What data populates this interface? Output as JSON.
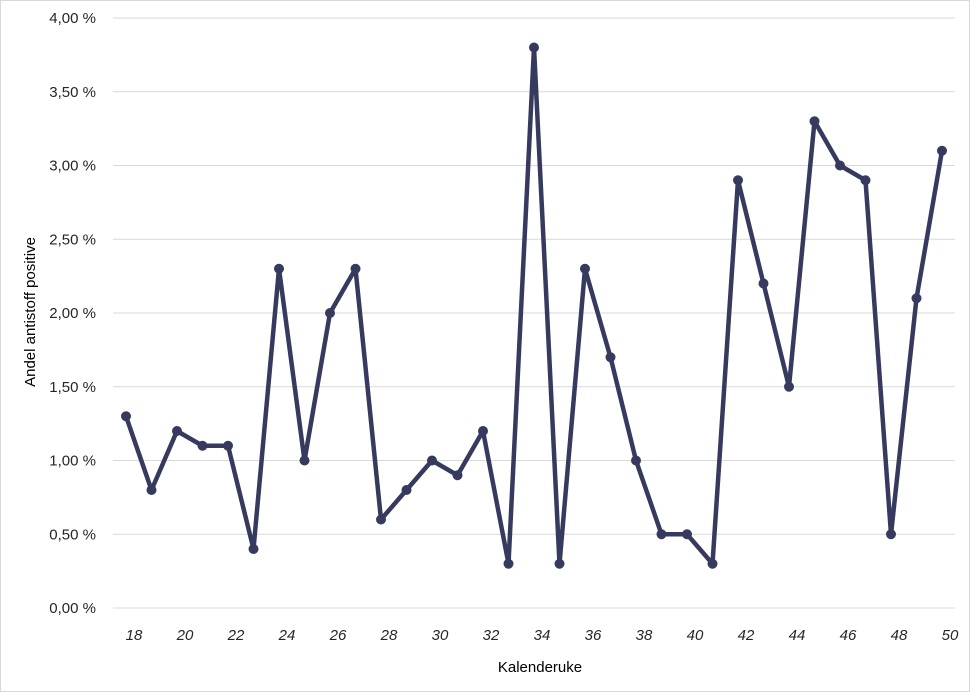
{
  "chart_data": {
    "type": "line",
    "xlabel": "Kalenderuke",
    "ylabel": "Andel antistoff positive",
    "ylim": [
      0,
      4
    ],
    "y_ticks": [
      0,
      0.5,
      1,
      1.5,
      2,
      2.5,
      3,
      3.5,
      4
    ],
    "y_tick_labels": [
      "0,00 %",
      "0,50 %",
      "1,00 %",
      "1,50 %",
      "2,00 %",
      "2,50 %",
      "3,00 %",
      "3,50 %",
      "4,00 %"
    ],
    "x": [
      18,
      19,
      20,
      21,
      22,
      23,
      24,
      25,
      26,
      27,
      28,
      29,
      30,
      31,
      32,
      33,
      34,
      35,
      36,
      37,
      38,
      39,
      40,
      41,
      42,
      43,
      44,
      45,
      46,
      47,
      48,
      49,
      50
    ],
    "x_tick_labels": [
      "18",
      "20",
      "22",
      "24",
      "26",
      "28",
      "30",
      "32",
      "34",
      "36",
      "38",
      "40",
      "42",
      "44",
      "46",
      "48",
      "50"
    ],
    "series": [
      {
        "values": [
          1.3,
          0.8,
          1.2,
          1.1,
          1.1,
          0.4,
          2.3,
          1.0,
          2.0,
          2.3,
          0.6,
          0.8,
          1.0,
          0.9,
          1.2,
          0.3,
          3.8,
          0.3,
          2.3,
          1.7,
          1.0,
          0.5,
          0.5,
          0.3,
          2.9,
          2.2,
          1.5,
          3.3,
          3.0,
          2.9,
          0.5,
          2.1,
          3.1
        ],
        "color": "#363A5E"
      }
    ],
    "grid": true,
    "grid_color": "#d9d9d9",
    "legend": "none"
  }
}
